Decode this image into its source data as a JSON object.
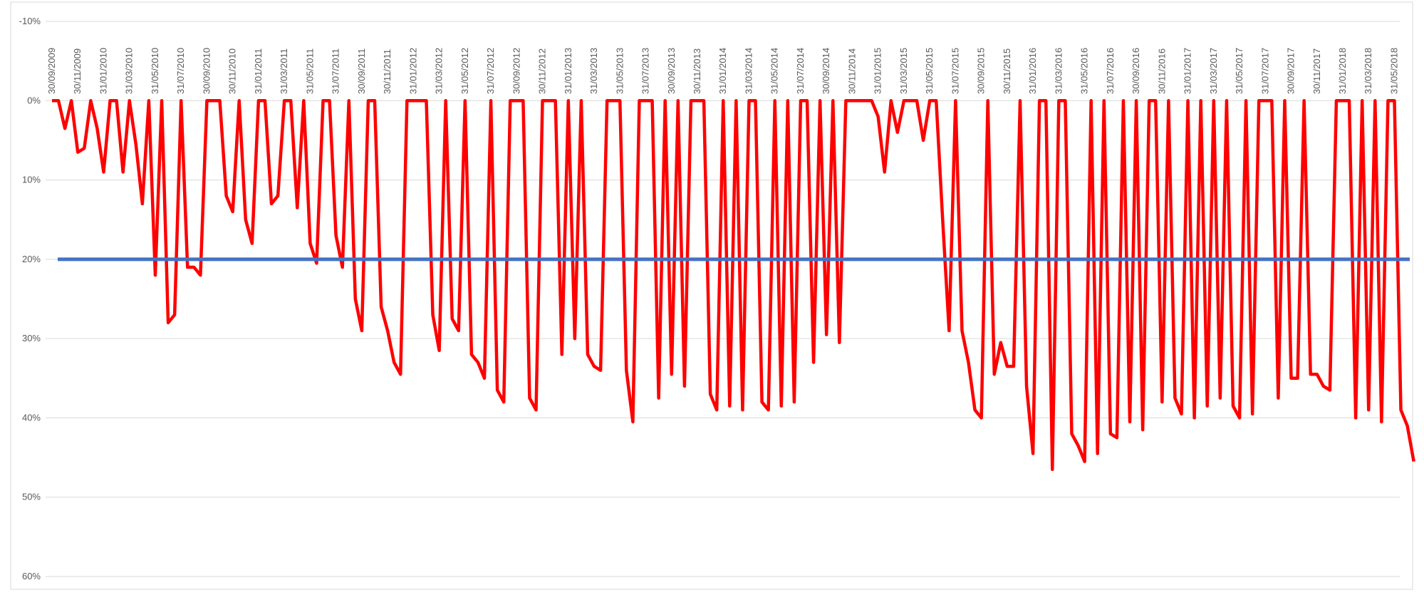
{
  "chart_data": {
    "type": "line",
    "categories": [
      "30/09/2009",
      null,
      null,
      null,
      "30/11/2009",
      null,
      null,
      null,
      "31/01/2010",
      null,
      null,
      null,
      "31/03/2010",
      null,
      null,
      null,
      "31/05/2010",
      null,
      null,
      null,
      "31/07/2010",
      null,
      null,
      null,
      "30/09/2010",
      null,
      null,
      null,
      "30/11/2010",
      null,
      null,
      null,
      "31/01/2011",
      null,
      null,
      null,
      "31/03/2011",
      null,
      null,
      null,
      "31/05/2011",
      null,
      null,
      null,
      "31/07/2011",
      null,
      null,
      null,
      "30/09/2011",
      null,
      null,
      null,
      "30/11/2011",
      null,
      null,
      null,
      "31/01/2012",
      null,
      null,
      null,
      "31/03/2012",
      null,
      null,
      null,
      "31/05/2012",
      null,
      null,
      null,
      "31/07/2012",
      null,
      null,
      null,
      "30/09/2012",
      null,
      null,
      null,
      "30/11/2012",
      null,
      null,
      null,
      "31/01/2013",
      null,
      null,
      null,
      "31/03/2013",
      null,
      null,
      null,
      "31/05/2013",
      null,
      null,
      null,
      "31/07/2013",
      null,
      null,
      null,
      "30/09/2013",
      null,
      null,
      null,
      "30/11/2013",
      null,
      null,
      null,
      "31/01/2014",
      null,
      null,
      null,
      "31/03/2014",
      null,
      null,
      null,
      "31/05/2014",
      null,
      null,
      null,
      "31/07/2014",
      null,
      null,
      null,
      "30/09/2014",
      null,
      null,
      null,
      "30/11/2014",
      null,
      null,
      null,
      "31/01/2015",
      null,
      null,
      null,
      "31/03/2015",
      null,
      null,
      null,
      "31/05/2015",
      null,
      null,
      null,
      "31/07/2015",
      null,
      null,
      null,
      "30/09/2015",
      null,
      null,
      null,
      "30/11/2015",
      null,
      null,
      null,
      "31/01/2016",
      null,
      null,
      null,
      "31/03/2016",
      null,
      null,
      null,
      "31/05/2016",
      null,
      null,
      null,
      "31/07/2016",
      null,
      null,
      null,
      "30/09/2016",
      null,
      null,
      null,
      "30/11/2016",
      null,
      null,
      null,
      "31/01/2017",
      null,
      null,
      null,
      "31/03/2017",
      null,
      null,
      null,
      "31/05/2017",
      null,
      null,
      null,
      "31/07/2017",
      null,
      null,
      null,
      "30/09/2017",
      null,
      null,
      null,
      "30/11/2017",
      null,
      null,
      null,
      "31/01/2018",
      null,
      null,
      null,
      "31/03/2018",
      null,
      null,
      null,
      "31/05/2018",
      null,
      null,
      null
    ],
    "values": [
      0,
      0,
      3.5,
      0,
      6.5,
      6,
      0,
      3.5,
      9,
      0,
      0,
      9,
      0,
      5.5,
      13,
      0,
      22,
      0,
      28,
      27,
      0,
      21,
      21,
      22,
      0,
      0,
      0,
      12,
      14,
      0,
      15,
      18,
      0,
      0,
      13,
      12,
      0,
      0,
      13.5,
      0,
      18,
      20.5,
      0,
      0,
      17,
      21,
      0,
      25,
      29,
      0,
      0,
      26,
      29,
      33,
      34.5,
      0,
      0,
      0,
      0,
      27,
      31.5,
      0,
      27.5,
      29,
      0,
      32,
      33,
      35,
      0,
      36.5,
      38,
      0,
      0,
      0,
      37.5,
      39,
      0,
      0,
      0,
      32,
      0,
      30,
      0,
      32,
      33.5,
      34,
      0,
      0,
      0,
      34,
      40.5,
      0,
      0,
      0,
      37.5,
      0,
      34.5,
      0,
      36,
      0,
      0,
      0,
      37,
      39,
      0,
      38.5,
      0,
      39,
      0,
      0,
      38,
      39,
      0,
      38.5,
      0,
      38,
      0,
      0,
      33,
      0,
      29.5,
      0,
      30.5,
      0,
      0,
      0,
      0,
      0,
      2,
      9,
      0,
      4,
      0,
      0,
      0,
      5,
      0,
      0,
      15,
      29,
      0,
      29,
      33,
      39,
      40,
      0,
      34.5,
      30.5,
      33.5,
      33.5,
      0,
      36,
      44.5,
      0,
      0,
      46.5,
      0,
      0,
      42,
      43.5,
      45.5,
      0,
      44.5,
      0,
      42,
      42.5,
      0,
      40.5,
      0,
      41.5,
      0,
      0,
      38,
      0,
      37.5,
      39.5,
      0,
      40,
      0,
      38.5,
      0,
      37.5,
      0,
      38.5,
      40,
      0,
      39.5,
      0,
      0,
      0,
      37.5,
      0,
      35,
      35,
      0,
      34.5,
      34.5,
      36,
      36.5,
      0,
      0,
      0,
      40,
      0,
      39,
      0,
      40.5,
      0,
      0,
      39,
      41,
      45.5
    ],
    "color": "#ff0000",
    "ylim": [
      -10,
      60
    ],
    "y_inverted": true,
    "yticks": [
      {
        "value": -10,
        "label": "-10%"
      },
      {
        "value": 0,
        "label": "0%"
      },
      {
        "value": 10,
        "label": "10%"
      },
      {
        "value": 20,
        "label": "20%"
      },
      {
        "value": 30,
        "label": "30%"
      },
      {
        "value": 40,
        "label": "40%"
      },
      {
        "value": 50,
        "label": "50%"
      },
      {
        "value": 60,
        "label": "60%"
      }
    ],
    "grid": true,
    "reference_line": {
      "value": 20,
      "color": "#4472c4"
    }
  }
}
